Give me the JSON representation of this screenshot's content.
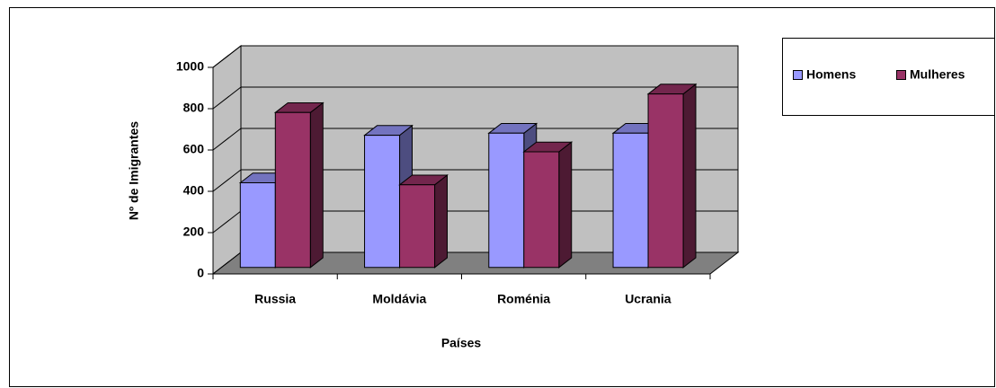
{
  "chart_data": {
    "type": "bar3d",
    "categories": [
      "Russia",
      "Moldávia",
      "Roménia",
      "Ucrania"
    ],
    "series": [
      {
        "name": "Homens",
        "color": "#9999ff",
        "values": [
          410,
          640,
          650,
          650
        ]
      },
      {
        "name": "Mulheres",
        "color": "#993366",
        "values": [
          750,
          400,
          560,
          840
        ]
      }
    ],
    "xlabel": "Países",
    "ylabel": "Nº de Imigrantes",
    "ylim": [
      0,
      1000
    ],
    "yticks": [
      0,
      200,
      400,
      600,
      800,
      1000
    ],
    "grid": true,
    "legend": "right"
  }
}
